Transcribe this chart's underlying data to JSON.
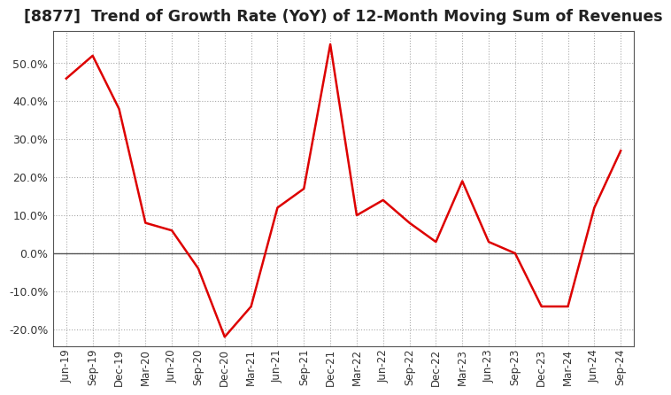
{
  "title": "[8877]  Trend of Growth Rate (YoY) of 12-Month Moving Sum of Revenues",
  "title_fontsize": 12.5,
  "line_color": "#dd0000",
  "background_color": "#ffffff",
  "grid_color": "#aaaaaa",
  "ylim": [
    -0.245,
    0.585
  ],
  "yticks": [
    -0.2,
    -0.1,
    0.0,
    0.1,
    0.2,
    0.3,
    0.4,
    0.5
  ],
  "dates": [
    "Jun-19",
    "Sep-19",
    "Dec-19",
    "Mar-20",
    "Jun-20",
    "Sep-20",
    "Dec-20",
    "Mar-21",
    "Jun-21",
    "Sep-21",
    "Dec-21",
    "Mar-22",
    "Jun-22",
    "Sep-22",
    "Dec-22",
    "Mar-23",
    "Jun-23",
    "Sep-23",
    "Dec-23",
    "Mar-24",
    "Jun-24",
    "Sep-24"
  ],
  "values": [
    0.46,
    0.52,
    0.38,
    0.08,
    0.06,
    -0.04,
    -0.22,
    -0.14,
    0.12,
    0.17,
    0.55,
    0.1,
    0.14,
    0.08,
    0.03,
    0.19,
    0.03,
    0.0,
    -0.14,
    -0.14,
    0.12,
    0.27
  ]
}
